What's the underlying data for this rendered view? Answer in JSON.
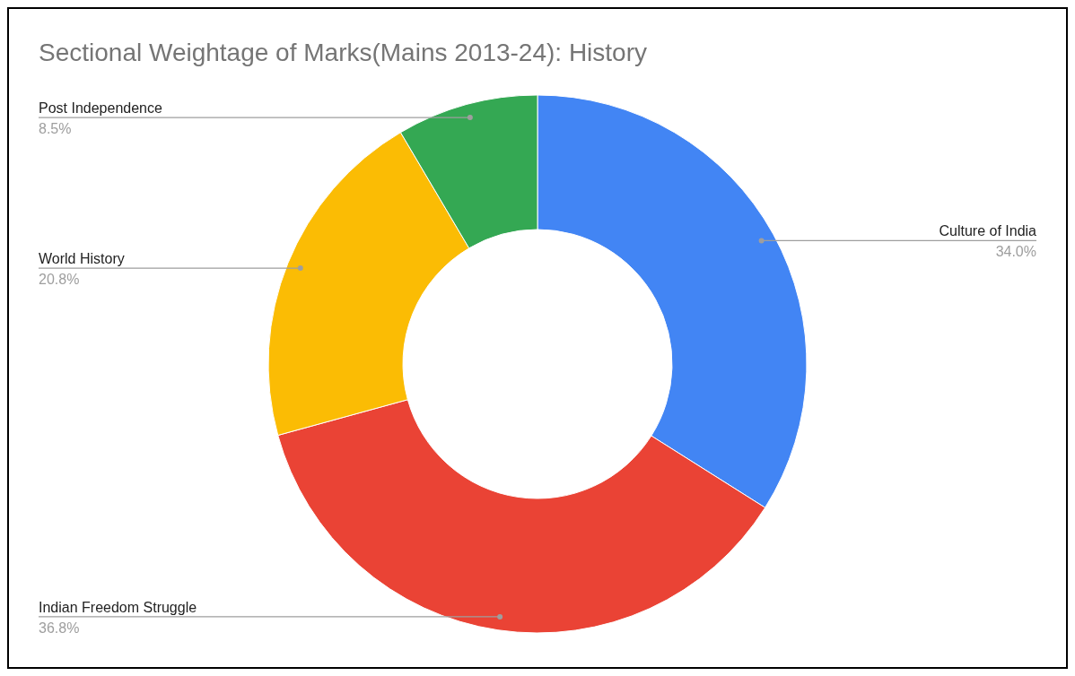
{
  "chart_data": {
    "type": "donut",
    "title": "Sectional Weightage of Marks(Mains 2013-24): History",
    "categories": [
      "Culture of India",
      "Indian Freedom Struggle",
      "World History",
      "Post Independence"
    ],
    "values": [
      34.0,
      36.8,
      20.8,
      8.5
    ],
    "value_labels": [
      "34.0%",
      "36.8%",
      "20.8%",
      "8.5%"
    ],
    "colors": [
      "#4285f4",
      "#ea4335",
      "#fbbc04",
      "#34a853"
    ]
  }
}
